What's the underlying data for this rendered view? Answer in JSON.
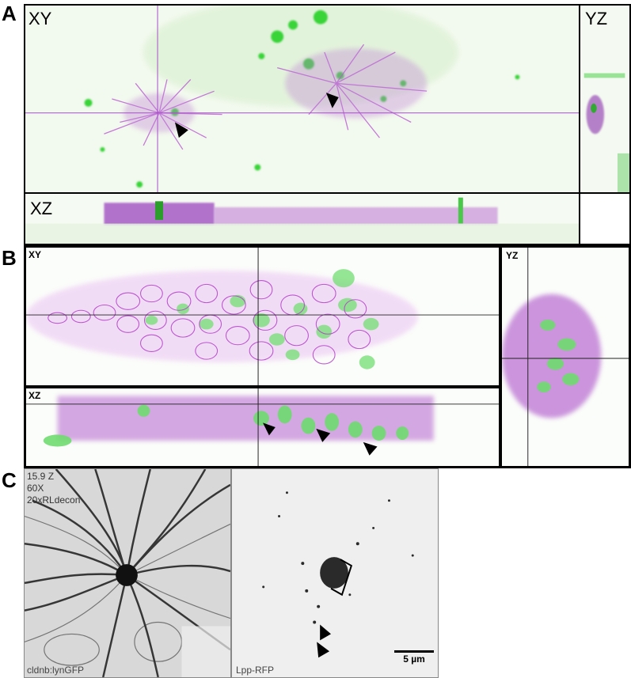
{
  "panels": {
    "a": {
      "letter": "A",
      "xy_label": "XY",
      "yz_label": "YZ",
      "xz_label": "XZ"
    },
    "b": {
      "letter": "B",
      "xy_label": "XY",
      "yz_label": "YZ",
      "xz_label": "XZ"
    },
    "c": {
      "letter": "C",
      "overlay_lines": [
        "15.9 Z",
        "60X",
        "20xRLdecon"
      ],
      "left_caption": "cldnb:lynGFP",
      "right_caption": "Lpp-RFP",
      "scale_bar_label": "5 µm"
    }
  },
  "colors": {
    "green": "#3ddc3d",
    "magenta": "#b23fc9",
    "crosshair_a": "#a64ec8",
    "crosshair_b": "#222222"
  },
  "icons": [
    "arrowhead-icon",
    "bracket-icon"
  ]
}
